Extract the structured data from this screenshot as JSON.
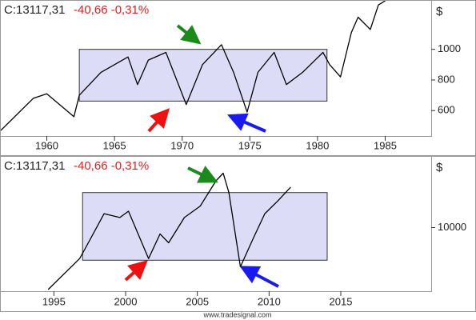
{
  "footer": "www.tradesignal.com",
  "chart_data": [
    {
      "type": "line",
      "label": "C:13117,31",
      "change": "-40,66 -0,31%",
      "unit": "$",
      "x": [
        1956.6,
        1959,
        1960,
        1962,
        1962.4,
        1964,
        1966,
        1966.7,
        1967.5,
        1968.8,
        1970.3,
        1971.5,
        1972.9,
        1973.8,
        1974.8,
        1975.6,
        1976.8,
        1977.7,
        1978.9,
        1980.4,
        1980.9,
        1981.7,
        1982.5,
        1983,
        1983.9,
        1984.5,
        1985
      ],
      "values": [
        470,
        680,
        710,
        560,
        700,
        850,
        950,
        770,
        930,
        980,
        640,
        900,
        1030,
        850,
        590,
        850,
        980,
        770,
        850,
        980,
        900,
        820,
        1110,
        1210,
        1130,
        1290,
        1317
      ],
      "color": "#000000",
      "box": {
        "x": [
          1962.4,
          1980.7
        ],
        "y": [
          662,
          1000
        ]
      },
      "xlim": [
        1956.6,
        1988.4
      ],
      "xticks": [
        1960,
        1965,
        1970,
        1975,
        1980,
        1985
      ],
      "ylim": [
        434,
        1317
      ],
      "yticks": [
        600,
        800,
        1000
      ]
    },
    {
      "type": "line",
      "label": "C:13117,31",
      "change": "-40,66 -0,31%",
      "unit": "$",
      "x": [
        1994.6,
        1996.8,
        1997.4,
        1998.5,
        1999.6,
        2000.2,
        2001.6,
        2002.4,
        2003,
        2004.1,
        2005.2,
        2006.3,
        2006.8,
        2007.2,
        2008,
        2008.9,
        2009.7,
        2010.6,
        2011.5
      ],
      "values": [
        5100,
        7550,
        8800,
        11100,
        10800,
        11300,
        7550,
        9500,
        8800,
        10800,
        11700,
        13700,
        14300,
        12770,
        6900,
        9150,
        11100,
        12100,
        13200
      ],
      "color": "#000000",
      "box": {
        "x": [
          1997,
          2014.05
        ],
        "y": [
          7420,
          12770
        ]
      },
      "xlim": [
        1991.3,
        2021.3
      ],
      "xticks": [
        1995,
        2000,
        2005,
        2010,
        2015
      ],
      "ylim": [
        4970,
        15600
      ],
      "yticks": [
        10000
      ]
    }
  ]
}
